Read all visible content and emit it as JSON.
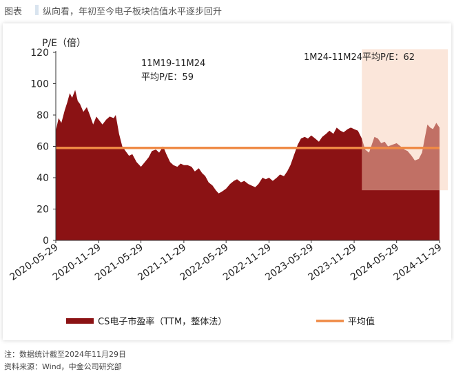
{
  "header": {
    "label": "图表",
    "title": "纵向看，年初至今电子板块估值水平逐步回升"
  },
  "chart_data": {
    "type": "area",
    "ylabel": "P/E（倍）",
    "ylim": [
      0,
      120
    ],
    "y_ticks": [
      0,
      20,
      40,
      60,
      80,
      100,
      120
    ],
    "x_tick_labels": [
      "2020-05-29",
      "2020-11-29",
      "2021-05-29",
      "2021-11-29",
      "2022-05-29",
      "2022-11-29",
      "2023-05-29",
      "2023-11-29",
      "2024-05-29",
      "2024-11-29"
    ],
    "x_start": "2020-05-29",
    "x_end": "2024-11-29",
    "series": [
      {
        "name": "CS电子市盈率（TTM，整体法）",
        "color": "#8b1214",
        "points": [
          [
            "2020-05-29",
            70
          ],
          [
            "2020-06-10",
            78
          ],
          [
            "2020-06-22",
            75
          ],
          [
            "2020-07-06",
            83
          ],
          [
            "2020-07-17",
            88
          ],
          [
            "2020-07-28",
            94
          ],
          [
            "2020-08-07",
            91
          ],
          [
            "2020-08-20",
            96
          ],
          [
            "2020-08-31",
            89
          ],
          [
            "2020-09-10",
            87
          ],
          [
            "2020-09-24",
            82
          ],
          [
            "2020-10-09",
            85
          ],
          [
            "2020-10-22",
            80
          ],
          [
            "2020-11-05",
            74
          ],
          [
            "2020-11-19",
            79
          ],
          [
            "2020-11-29",
            77
          ],
          [
            "2020-12-15",
            74
          ],
          [
            "2020-12-31",
            77
          ],
          [
            "2021-01-15",
            79
          ],
          [
            "2021-02-01",
            78
          ],
          [
            "2021-02-10",
            80
          ],
          [
            "2021-02-24",
            68
          ],
          [
            "2021-03-10",
            60
          ],
          [
            "2021-03-24",
            57
          ],
          [
            "2021-04-08",
            54
          ],
          [
            "2021-04-22",
            55
          ],
          [
            "2021-05-10",
            50
          ],
          [
            "2021-05-29",
            47
          ],
          [
            "2021-06-15",
            50
          ],
          [
            "2021-07-01",
            53
          ],
          [
            "2021-07-15",
            57
          ],
          [
            "2021-08-01",
            58
          ],
          [
            "2021-08-15",
            56
          ],
          [
            "2021-09-01",
            60
          ],
          [
            "2021-09-15",
            55
          ],
          [
            "2021-10-01",
            50
          ],
          [
            "2021-10-15",
            48
          ],
          [
            "2021-11-01",
            47
          ],
          [
            "2021-11-15",
            49
          ],
          [
            "2021-11-29",
            48
          ],
          [
            "2021-12-15",
            48
          ],
          [
            "2022-01-01",
            47
          ],
          [
            "2022-01-15",
            44
          ],
          [
            "2022-02-01",
            46
          ],
          [
            "2022-02-15",
            43
          ],
          [
            "2022-03-01",
            41
          ],
          [
            "2022-03-15",
            37
          ],
          [
            "2022-04-01",
            35
          ],
          [
            "2022-04-15",
            32
          ],
          [
            "2022-04-27",
            30
          ],
          [
            "2022-05-10",
            31
          ],
          [
            "2022-05-29",
            33
          ],
          [
            "2022-06-15",
            36
          ],
          [
            "2022-07-01",
            38
          ],
          [
            "2022-07-15",
            39
          ],
          [
            "2022-08-01",
            37
          ],
          [
            "2022-08-15",
            38
          ],
          [
            "2022-09-01",
            36
          ],
          [
            "2022-09-15",
            35
          ],
          [
            "2022-10-01",
            34
          ],
          [
            "2022-10-15",
            36
          ],
          [
            "2022-11-01",
            40
          ],
          [
            "2022-11-15",
            39
          ],
          [
            "2022-11-29",
            40
          ],
          [
            "2022-12-15",
            38
          ],
          [
            "2023-01-01",
            40
          ],
          [
            "2023-01-15",
            42
          ],
          [
            "2023-02-01",
            41
          ],
          [
            "2023-02-15",
            44
          ],
          [
            "2023-03-01",
            48
          ],
          [
            "2023-03-15",
            54
          ],
          [
            "2023-04-01",
            61
          ],
          [
            "2023-04-15",
            65
          ],
          [
            "2023-05-01",
            66
          ],
          [
            "2023-05-15",
            65
          ],
          [
            "2023-05-29",
            67
          ],
          [
            "2023-06-15",
            65
          ],
          [
            "2023-07-01",
            63
          ],
          [
            "2023-07-15",
            66
          ],
          [
            "2023-08-01",
            68
          ],
          [
            "2023-08-15",
            70
          ],
          [
            "2023-09-01",
            68
          ],
          [
            "2023-09-15",
            72
          ],
          [
            "2023-10-01",
            70
          ],
          [
            "2023-10-15",
            69
          ],
          [
            "2023-11-01",
            71
          ],
          [
            "2023-11-15",
            72
          ],
          [
            "2023-11-29",
            71
          ],
          [
            "2023-12-15",
            70
          ],
          [
            "2024-01-01",
            65
          ],
          [
            "2024-01-15",
            58
          ],
          [
            "2024-02-01",
            56
          ],
          [
            "2024-02-10",
            60
          ],
          [
            "2024-02-24",
            66
          ],
          [
            "2024-03-10",
            65
          ],
          [
            "2024-03-24",
            62
          ],
          [
            "2024-04-08",
            63
          ],
          [
            "2024-04-22",
            60
          ],
          [
            "2024-05-10",
            61
          ],
          [
            "2024-05-29",
            62
          ],
          [
            "2024-06-15",
            60
          ],
          [
            "2024-07-01",
            58
          ],
          [
            "2024-07-15",
            57
          ],
          [
            "2024-08-01",
            54
          ],
          [
            "2024-08-15",
            51
          ],
          [
            "2024-09-01",
            52
          ],
          [
            "2024-09-15",
            56
          ],
          [
            "2024-09-25",
            64
          ],
          [
            "2024-10-08",
            74
          ],
          [
            "2024-10-20",
            72
          ],
          [
            "2024-11-01",
            71
          ],
          [
            "2024-11-15",
            75
          ],
          [
            "2024-11-29",
            72
          ]
        ]
      },
      {
        "name": "平均值",
        "color": "#ef8a45",
        "value": 59
      }
    ],
    "highlight": {
      "from": "2024-01-01",
      "to": "2024-11-29"
    },
    "annotations": [
      {
        "lines": [
          "11M19-11M24",
          "平均P/E：59"
        ]
      },
      {
        "lines": [
          "1M24-11M24平均P/E：62"
        ]
      }
    ],
    "legend_position": "bottom"
  },
  "footer": {
    "note": "注：数据统计截至2024年11月29日",
    "source": "资料来源：Wind，中金公司研究部"
  }
}
